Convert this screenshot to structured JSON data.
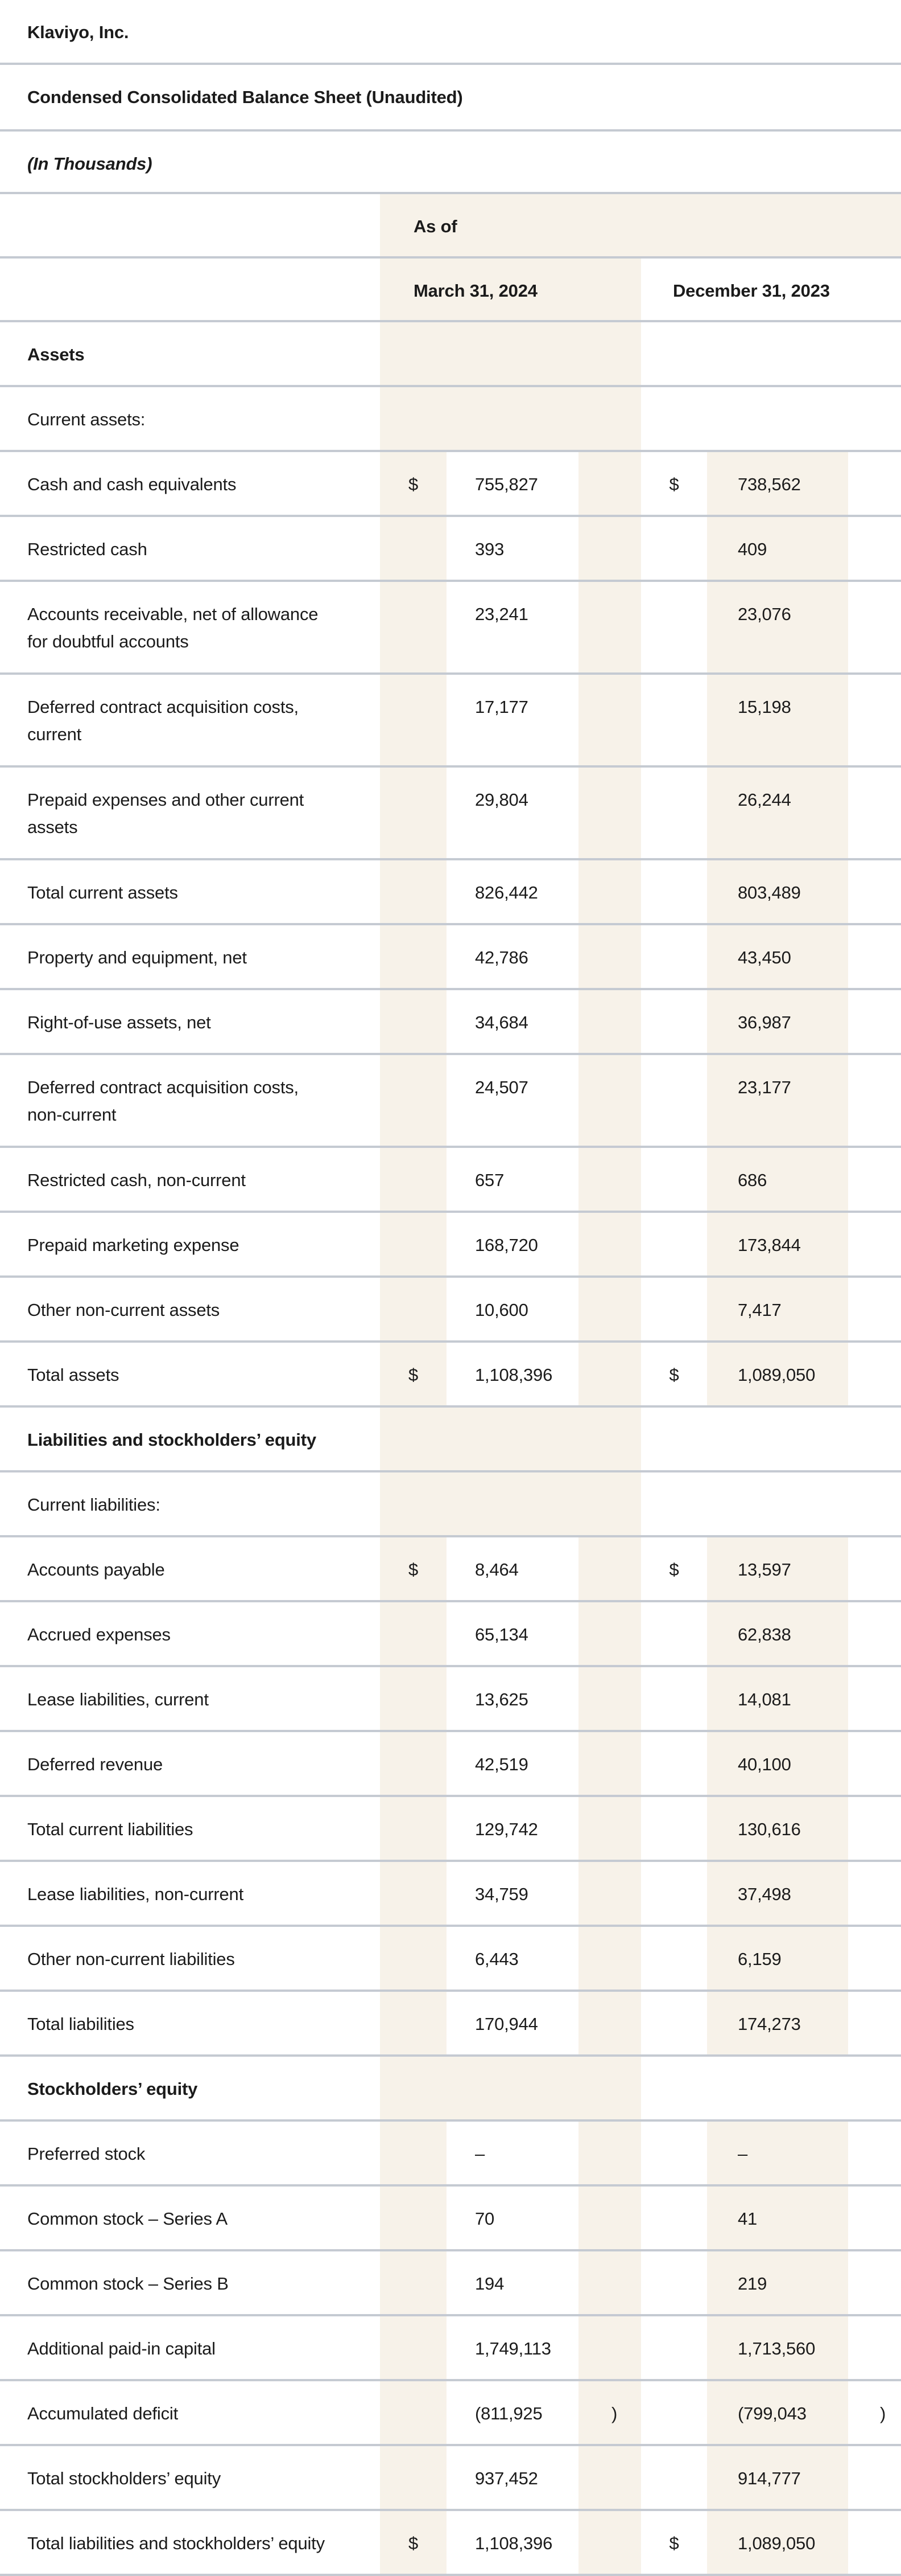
{
  "style": {
    "accent_beige": "#f7f2e9",
    "divider_gray": "#c5cad2",
    "text_color": "#1b1b1b"
  },
  "header": {
    "company": "Klaviyo, Inc.",
    "statement_title": "Condensed Consolidated Balance Sheet (Unaudited)",
    "units_note": "(In Thousands)"
  },
  "columns": {
    "group_label": "As of",
    "march": "March 31, 2024",
    "december": "December 31, 2023"
  },
  "rows": [
    {
      "type": "section",
      "label": "Assets"
    },
    {
      "type": "subheader",
      "label": "Current assets:"
    },
    {
      "type": "data",
      "label": "Cash and cash equivalents",
      "d1": "$",
      "v1": "755,827",
      "p1": "",
      "d2": "$",
      "v2": "738,562",
      "p2": ""
    },
    {
      "type": "data",
      "label": "Restricted cash",
      "d1": "",
      "v1": "393",
      "p1": "",
      "d2": "",
      "v2": "409",
      "p2": ""
    },
    {
      "type": "data",
      "label": "Accounts receivable, net of allowance\nfor doubtful accounts",
      "d1": "",
      "v1": "23,241",
      "p1": "",
      "d2": "",
      "v2": "23,076",
      "p2": ""
    },
    {
      "type": "data",
      "label": "Deferred contract acquisition costs,\ncurrent",
      "d1": "",
      "v1": "17,177",
      "p1": "",
      "d2": "",
      "v2": "15,198",
      "p2": ""
    },
    {
      "type": "data",
      "label": "Prepaid expenses and other current\nassets",
      "d1": "",
      "v1": "29,804",
      "p1": "",
      "d2": "",
      "v2": "26,244",
      "p2": ""
    },
    {
      "type": "data",
      "label": "Total current assets",
      "d1": "",
      "v1": "826,442",
      "p1": "",
      "d2": "",
      "v2": "803,489",
      "p2": ""
    },
    {
      "type": "data",
      "label": "Property and equipment, net",
      "d1": "",
      "v1": "42,786",
      "p1": "",
      "d2": "",
      "v2": "43,450",
      "p2": ""
    },
    {
      "type": "data",
      "label": "Right-of-use assets, net",
      "d1": "",
      "v1": "34,684",
      "p1": "",
      "d2": "",
      "v2": "36,987",
      "p2": ""
    },
    {
      "type": "data",
      "label": "Deferred contract acquisition costs,\nnon-current",
      "d1": "",
      "v1": "24,507",
      "p1": "",
      "d2": "",
      "v2": "23,177",
      "p2": ""
    },
    {
      "type": "data",
      "label": "Restricted cash, non-current",
      "d1": "",
      "v1": "657",
      "p1": "",
      "d2": "",
      "v2": "686",
      "p2": ""
    },
    {
      "type": "data",
      "label": "Prepaid marketing expense",
      "d1": "",
      "v1": "168,720",
      "p1": "",
      "d2": "",
      "v2": "173,844",
      "p2": ""
    },
    {
      "type": "data",
      "label": "Other non-current assets",
      "d1": "",
      "v1": "10,600",
      "p1": "",
      "d2": "",
      "v2": "7,417",
      "p2": ""
    },
    {
      "type": "data",
      "label": "Total assets",
      "d1": "$",
      "v1": "1,108,396",
      "p1": "",
      "d2": "$",
      "v2": "1,089,050",
      "p2": ""
    },
    {
      "type": "section",
      "label": "Liabilities and stockholders’ equity"
    },
    {
      "type": "subheader",
      "label": "Current liabilities:"
    },
    {
      "type": "data",
      "label": "Accounts payable",
      "d1": "$",
      "v1": "8,464",
      "p1": "",
      "d2": "$",
      "v2": "13,597",
      "p2": ""
    },
    {
      "type": "data",
      "label": "Accrued expenses",
      "d1": "",
      "v1": "65,134",
      "p1": "",
      "d2": "",
      "v2": "62,838",
      "p2": ""
    },
    {
      "type": "data",
      "label": "Lease liabilities, current",
      "d1": "",
      "v1": "13,625",
      "p1": "",
      "d2": "",
      "v2": "14,081",
      "p2": ""
    },
    {
      "type": "data",
      "label": "Deferred revenue",
      "d1": "",
      "v1": "42,519",
      "p1": "",
      "d2": "",
      "v2": "40,100",
      "p2": ""
    },
    {
      "type": "data",
      "label": "Total current liabilities",
      "d1": "",
      "v1": "129,742",
      "p1": "",
      "d2": "",
      "v2": "130,616",
      "p2": ""
    },
    {
      "type": "data",
      "label": "Lease liabilities, non-current",
      "d1": "",
      "v1": "34,759",
      "p1": "",
      "d2": "",
      "v2": "37,498",
      "p2": ""
    },
    {
      "type": "data",
      "label": "Other non-current liabilities",
      "d1": "",
      "v1": "6,443",
      "p1": "",
      "d2": "",
      "v2": "6,159",
      "p2": ""
    },
    {
      "type": "data",
      "label": "Total liabilities",
      "d1": "",
      "v1": "170,944",
      "p1": "",
      "d2": "",
      "v2": "174,273",
      "p2": ""
    },
    {
      "type": "section",
      "label": "Stockholders’ equity"
    },
    {
      "type": "data",
      "label": "Preferred stock",
      "d1": "",
      "v1": "–",
      "p1": "",
      "d2": "",
      "v2": "–",
      "p2": ""
    },
    {
      "type": "data",
      "label": "Common stock – Series A",
      "d1": "",
      "v1": "70",
      "p1": "",
      "d2": "",
      "v2": "41",
      "p2": ""
    },
    {
      "type": "data",
      "label": "Common stock – Series B",
      "d1": "",
      "v1": "194",
      "p1": "",
      "d2": "",
      "v2": "219",
      "p2": ""
    },
    {
      "type": "data",
      "label": "Additional paid-in capital",
      "d1": "",
      "v1": "1,749,113",
      "p1": "",
      "d2": "",
      "v2": "1,713,560",
      "p2": ""
    },
    {
      "type": "data",
      "label": "Accumulated deficit",
      "d1": "",
      "v1": "(811,925",
      "p1": ")",
      "d2": "",
      "v2": "(799,043",
      "p2": ")"
    },
    {
      "type": "data",
      "label": "Total stockholders’ equity",
      "d1": "",
      "v1": "937,452",
      "p1": "",
      "d2": "",
      "v2": "914,777",
      "p2": ""
    },
    {
      "type": "data",
      "label": "Total liabilities and stockholders’ equity",
      "d1": "$",
      "v1": "1,108,396",
      "p1": "",
      "d2": "$",
      "v2": "1,089,050",
      "p2": ""
    }
  ]
}
